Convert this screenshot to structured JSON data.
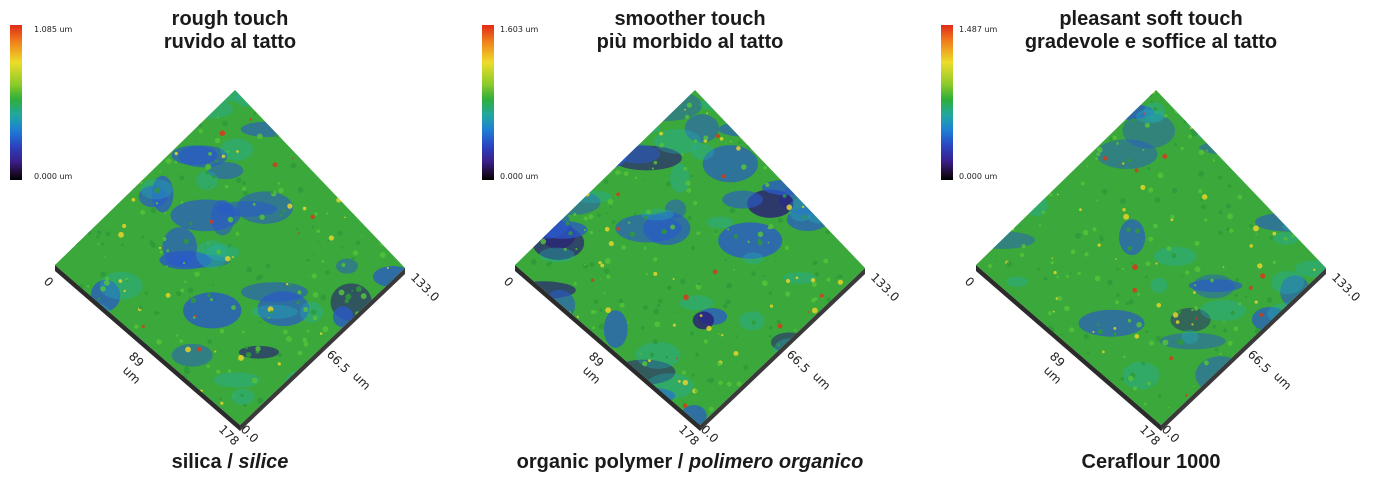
{
  "panels": [
    {
      "title_line1": "rough touch",
      "title_line2": "ruvido al tatto",
      "colorbar_max": "1.085 um",
      "colorbar_min": "0.000 um",
      "caption_main": "silica / ",
      "caption_italic": "silice",
      "axis_labels": {
        "left_zero": "0",
        "right_max": "133.0",
        "mid_left": "89",
        "mid_left_unit": "um",
        "mid_right": "66.5",
        "mid_right_unit": "um",
        "bottom_left": "178",
        "bottom_right": "0.0"
      }
    },
    {
      "title_line1": "smoother touch",
      "title_line2": "più morbido al tatto",
      "colorbar_max": "1.603 um",
      "colorbar_min": "0.000 um",
      "caption_main": "organic polymer / ",
      "caption_italic": "polimero organico",
      "axis_labels": {
        "left_zero": "0",
        "right_max": "133.0",
        "mid_left": "89",
        "mid_left_unit": "um",
        "mid_right": "66.5",
        "mid_right_unit": "um",
        "bottom_left": "178",
        "bottom_right": "0.0"
      }
    },
    {
      "title_line1": "pleasant soft touch",
      "title_line2": "gradevole e soffice al tatto",
      "colorbar_max": "1.487 um",
      "colorbar_min": "0.000 um",
      "caption_main": "Ceraflour 1000",
      "caption_italic": "",
      "axis_labels": {
        "left_zero": "0",
        "right_max": "133.0",
        "mid_left": "89",
        "mid_left_unit": "um",
        "mid_right": "66.5",
        "mid_right_unit": "um",
        "bottom_left": "178",
        "bottom_right": "0.0"
      }
    }
  ],
  "colors": {
    "surface_green": "#3aa83a",
    "surface_blue": "#2a5ac8",
    "surface_deep": "#2a1a7a",
    "surface_yellow": "#e8d42a",
    "surface_red": "#d83a1a"
  }
}
